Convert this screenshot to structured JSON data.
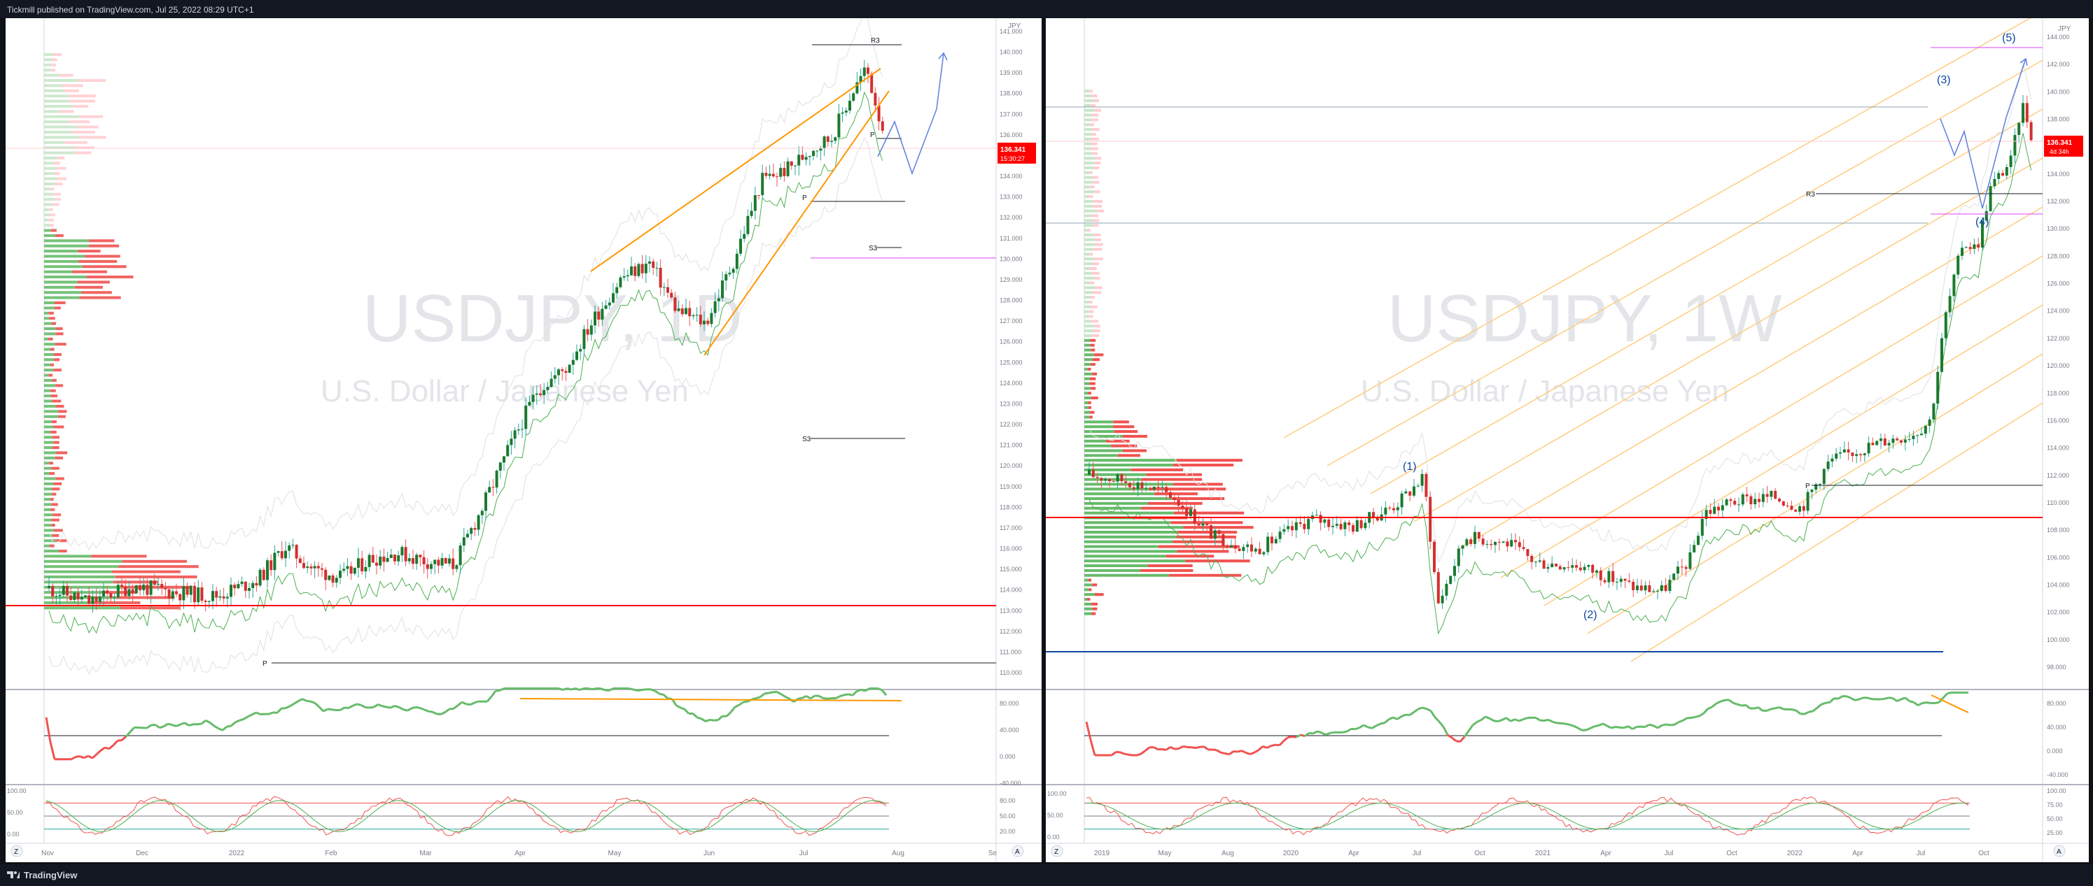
{
  "header": {
    "publish_info": "Tickmill published on TradingView.com, Jul 25, 2022 08:29 UTC+1"
  },
  "footer": {
    "brand": "TradingView"
  },
  "left_chart": {
    "watermark_symbol": "USDJPY, 1D",
    "watermark_name": "U.S. Dollar / Japanese Yen",
    "currency": "JPY",
    "price_ticks": [
      "141.000",
      "140.000",
      "139.000",
      "138.000",
      "137.000",
      "136.000",
      "135.000",
      "134.000",
      "133.000",
      "132.000",
      "131.000",
      "130.000",
      "129.000",
      "128.000",
      "127.000",
      "126.000",
      "125.000",
      "124.000",
      "123.000",
      "122.000",
      "121.000",
      "120.000",
      "119.000",
      "118.000",
      "117.000",
      "116.000",
      "115.000",
      "114.000",
      "113.000",
      "112.000",
      "111.000",
      "110.000"
    ],
    "last_price": "136.341",
    "countdown": "15:30:27",
    "pivot_labels": {
      "r3": "R3",
      "p_upper": "P",
      "p_mid": "P",
      "s3_upper": "S3",
      "s3_lower": "S3",
      "p_low": "P"
    },
    "x_ticks": [
      "Nov",
      "Dec",
      "2022",
      "Feb",
      "Mar",
      "Apr",
      "May",
      "Jun",
      "Jul",
      "Aug",
      "Se"
    ],
    "rsi_ticks": [
      "80.000",
      "40.000",
      "0.000",
      "-40.000"
    ],
    "stoch_ticks": [
      "100.00",
      "50.00",
      "0.00"
    ],
    "stoch_right_ticks": [
      "80.00",
      "50.00",
      "20.00"
    ],
    "scale_buttons": [
      "Z",
      "A"
    ]
  },
  "right_chart": {
    "watermark_symbol": "USDJPY, 1W",
    "watermark_name": "U.S. Dollar / Japanese Yen",
    "currency": "JPY",
    "price_ticks": [
      "144.000",
      "142.000",
      "140.000",
      "138.000",
      "136.000",
      "134.000",
      "132.000",
      "130.000",
      "128.000",
      "126.000",
      "124.000",
      "122.000",
      "120.000",
      "118.000",
      "116.000",
      "114.000",
      "112.000",
      "110.000",
      "108.000",
      "106.000",
      "104.000",
      "102.000",
      "100.000",
      "98.000"
    ],
    "last_price": "136.341",
    "countdown": "4d 34h",
    "pivot_labels": {
      "r3": "R3",
      "p": "P"
    },
    "wave_labels": [
      "(1)",
      "(2)",
      "(3)",
      "(4)",
      "(5)"
    ],
    "x_ticks": [
      "2019",
      "May",
      "Aug",
      "2020",
      "Apr",
      "Jul",
      "Oct",
      "2021",
      "Apr",
      "Jul",
      "Oct",
      "2022",
      "Apr",
      "Jul",
      "Oct"
    ],
    "rsi_ticks": [
      "80.000",
      "40.000",
      "0.000",
      "-40.000"
    ],
    "stoch_ticks": [
      "100.00",
      "50.00",
      "0.00"
    ],
    "stoch_right_ticks": [
      "100.00",
      "75.00",
      "50.00",
      "25.00"
    ],
    "scale_buttons": [
      "Z",
      "A"
    ]
  },
  "colors": {
    "up": "#26a69a",
    "down": "#ef5350",
    "up_vol": "#4caf50",
    "down_vol": "#f44336",
    "orange": "#ff9800",
    "blue": "#2962ff",
    "pivot_magenta": "#e040fb",
    "price_red": "#ff0000"
  }
}
